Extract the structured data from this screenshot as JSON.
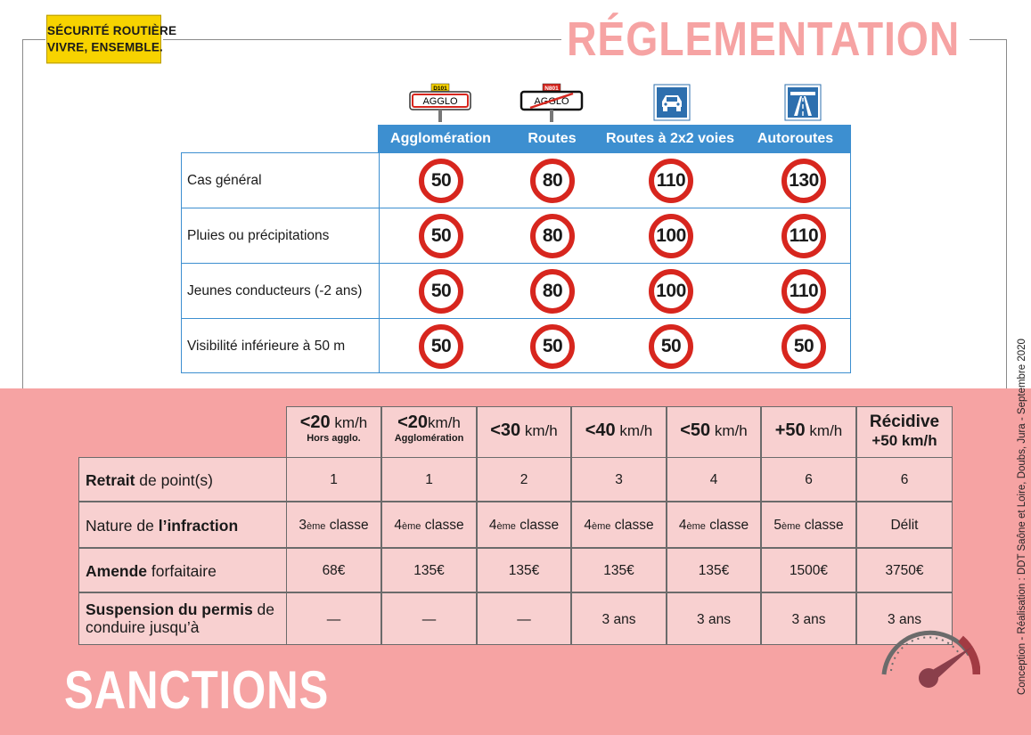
{
  "badge": {
    "line1": "SÉCURITÉ ROUTIÈRE",
    "line2": "VIVRE, ENSEMBLE."
  },
  "title_top": "RÉGLEMENTATION",
  "title_bottom": "SANCTIONS",
  "credit": "Conception - Réalisation : DDT Saône et Loire, Doubs, Jura - Septembre 2020",
  "icons": {
    "agglo_entry": {
      "icon": "town-entry-sign-icon",
      "code": "D101",
      "label": "AGGLO"
    },
    "agglo_exit": {
      "icon": "town-exit-sign-icon",
      "code": "N801",
      "label": "AGGLO"
    },
    "expressway": "expressway-car-sign-icon",
    "motorway": "motorway-sign-icon",
    "gauge": "speedometer-icon"
  },
  "regulation": {
    "columns": [
      "Agglomération",
      "Routes",
      "Routes à 2x2 voies",
      "Autoroutes"
    ],
    "rows": [
      {
        "label": "Cas général",
        "limits": [
          "50",
          "80",
          "110",
          "130"
        ]
      },
      {
        "label": "Pluies ou précipitations",
        "limits": [
          "50",
          "80",
          "100",
          "110"
        ]
      },
      {
        "label": "Jeunes conducteurs (-2 ans)",
        "limits": [
          "50",
          "80",
          "100",
          "110"
        ]
      },
      {
        "label": "Visibilité inférieure à 50 m",
        "limits": [
          "50",
          "50",
          "50",
          "50"
        ]
      }
    ]
  },
  "sanctions": {
    "columns": [
      {
        "main": "<20",
        "unit": " km/h",
        "sub": "Hors agglo."
      },
      {
        "main": "<20",
        "unit": "km/h",
        "sub": "Agglomération"
      },
      {
        "main": "<30",
        "unit": " km/h",
        "sub": ""
      },
      {
        "main": "<40",
        "unit": " km/h",
        "sub": ""
      },
      {
        "main": "<50",
        "unit": " km/h",
        "sub": ""
      },
      {
        "main": "+50",
        "unit": " km/h",
        "sub": ""
      },
      {
        "main": "Récidive",
        "unit": "",
        "sub": "+50 km/h"
      }
    ],
    "rows": [
      {
        "label_bold": "Retrait",
        "label_rest": " de point(s)",
        "label_prefix": "",
        "values": [
          "1",
          "1",
          "2",
          "3",
          "4",
          "6",
          "6"
        ]
      },
      {
        "label_prefix": "Nature de ",
        "label_bold": "l’infraction",
        "label_rest": "",
        "values": [
          {
            "n": "3",
            "sup": "ème",
            "t": " classe"
          },
          {
            "n": "4",
            "sup": "ème",
            "t": " classe"
          },
          {
            "n": "4",
            "sup": "ème",
            "t": " classe"
          },
          {
            "n": "4",
            "sup": "ème",
            "t": " classe"
          },
          {
            "n": "4",
            "sup": "ème",
            "t": " classe"
          },
          {
            "n": "5",
            "sup": "ème",
            "t": " classe"
          },
          {
            "n": "Délit",
            "sup": "",
            "t": ""
          }
        ]
      },
      {
        "label_prefix": "",
        "label_bold": "Amende",
        "label_rest": " forfaitaire",
        "values": [
          "68€",
          "135€",
          "135€",
          "135€",
          "135€",
          "1500€",
          "3750€"
        ]
      },
      {
        "label_prefix": "",
        "label_bold": "Suspension du permis",
        "label_rest": " de",
        "label_line2": "conduire jusqu’à",
        "values": [
          "—",
          "—",
          "—",
          "3 ans",
          "3 ans",
          "3 ans",
          "3 ans"
        ]
      }
    ]
  },
  "colors": {
    "accent_blue": "#3d8fd0",
    "pink_bg": "#f6a3a3",
    "cell_pink": "#f8d0d0",
    "sign_red": "#d7261e",
    "badge_yellow": "#f7d300"
  }
}
